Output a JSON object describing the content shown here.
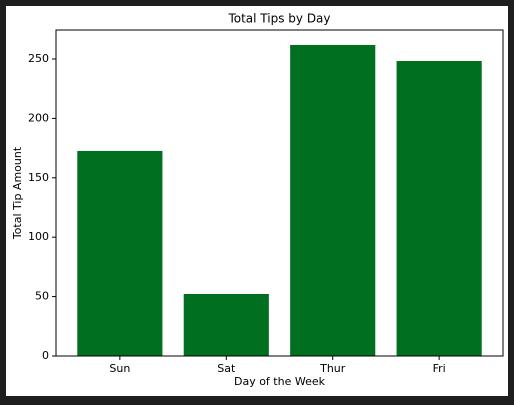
{
  "chart_data": {
    "type": "bar",
    "title": "Total Tips by Day",
    "x_label": "Day of the Week",
    "y_label": "Total Tip Amount",
    "categories": [
      "Sun",
      "Sat",
      "Thur",
      "Fri"
    ],
    "values": [
      172.6,
      52.2,
      261.8,
      248.3
    ],
    "color": "#006f1f",
    "ylim": [
      0,
      274.4
    ],
    "yticks": [
      0,
      50,
      100,
      150,
      200,
      250
    ],
    "grid": false
  }
}
